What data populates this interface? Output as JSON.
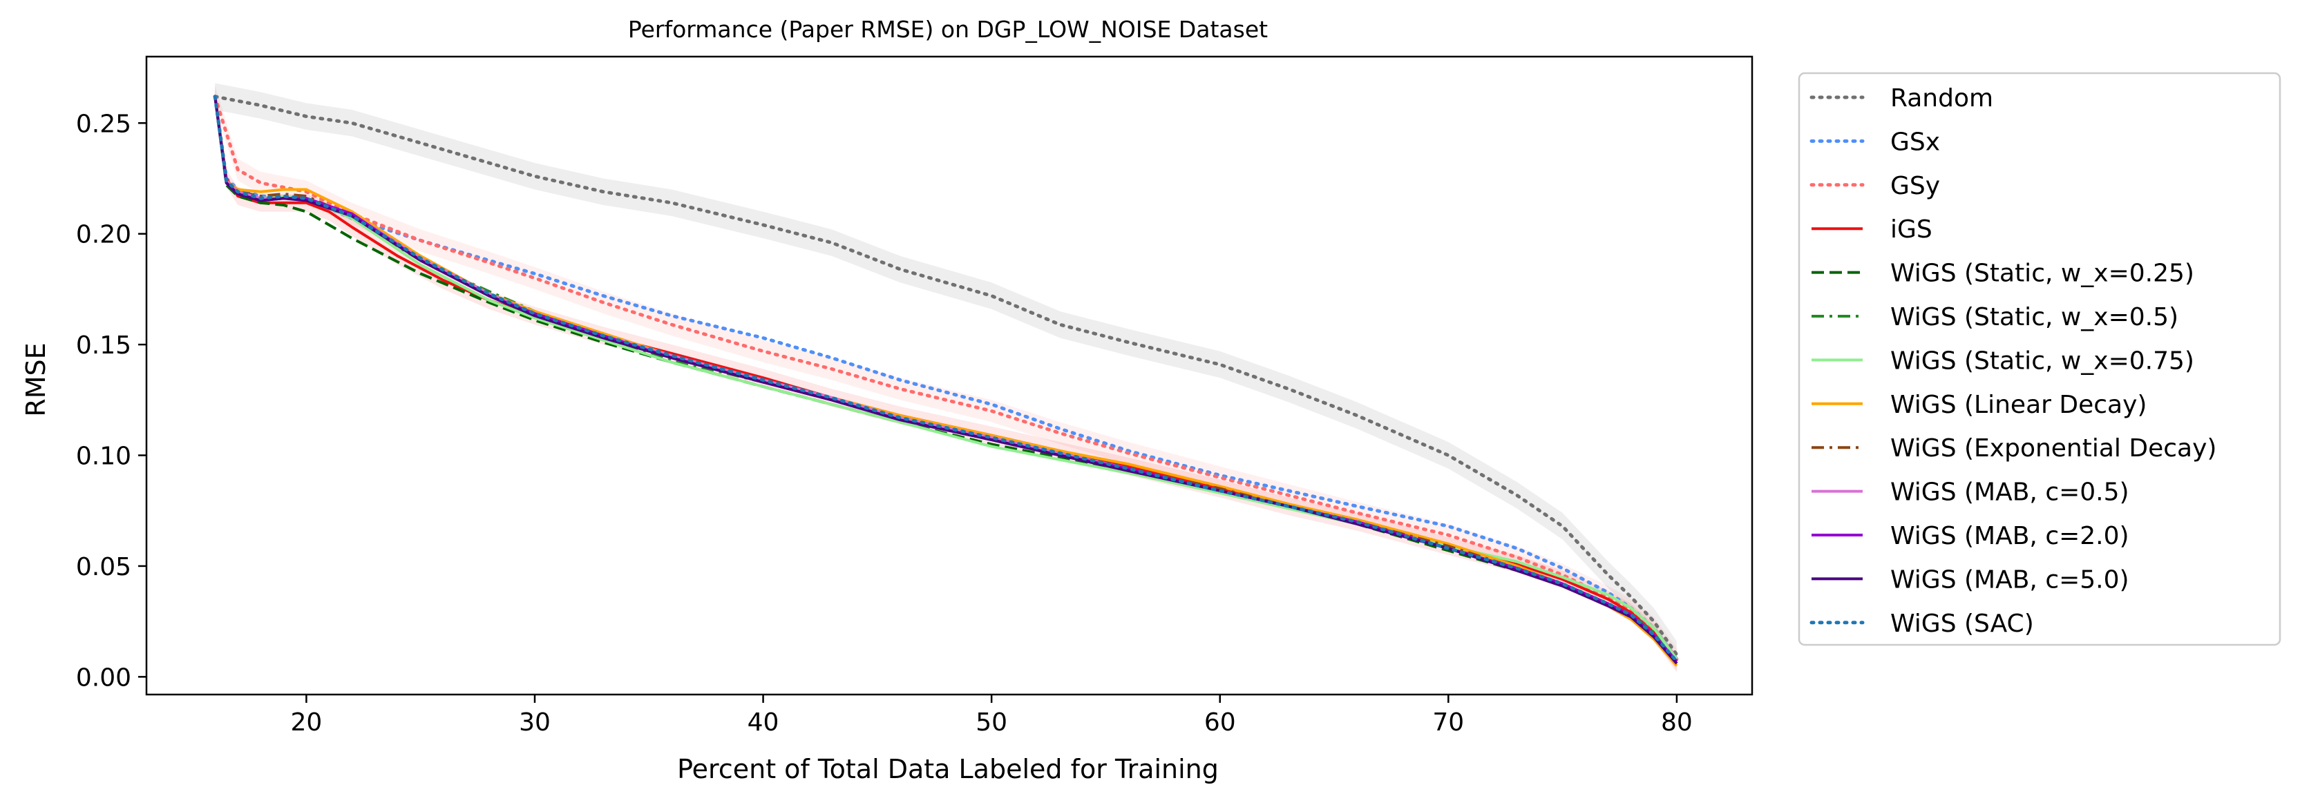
{
  "chart_data": {
    "type": "line",
    "title": "Performance (Paper RMSE) on DGP_LOW_NOISE Dataset",
    "xlabel": "Percent of Total Data Labeled for Training",
    "ylabel": "RMSE",
    "xlim": [
      13,
      83.3
    ],
    "ylim": [
      -0.008,
      0.28
    ],
    "xticks": [
      20,
      30,
      40,
      50,
      60,
      70,
      80
    ],
    "yticks": [
      0.0,
      0.05,
      0.1,
      0.15,
      0.2,
      0.25
    ],
    "xtick_labels": [
      "20",
      "30",
      "40",
      "50",
      "60",
      "70",
      "80"
    ],
    "ytick_labels": [
      "0.00",
      "0.05",
      "0.10",
      "0.15",
      "0.20",
      "0.25"
    ],
    "grid": false,
    "legend_position": "outside-right",
    "series": [
      {
        "name": "Random",
        "color": "#707070",
        "dash": "dotted",
        "band": true,
        "band_width": 0.006,
        "x": [
          16,
          17,
          18,
          20,
          22,
          25,
          28,
          30,
          33,
          36,
          40,
          43,
          46,
          50,
          53,
          56,
          60,
          63,
          66,
          70,
          73,
          75,
          77,
          78,
          79,
          80
        ],
        "y": [
          0.262,
          0.26,
          0.258,
          0.253,
          0.25,
          0.241,
          0.232,
          0.226,
          0.219,
          0.214,
          0.204,
          0.196,
          0.184,
          0.172,
          0.159,
          0.151,
          0.141,
          0.13,
          0.118,
          0.1,
          0.082,
          0.068,
          0.046,
          0.036,
          0.025,
          0.01
        ]
      },
      {
        "name": "GSx",
        "color": "#4f8ff7",
        "dash": "dotted",
        "band": false,
        "x": [
          16,
          16.5,
          17,
          18,
          20,
          22,
          25,
          28,
          30,
          33,
          36,
          40,
          43,
          46,
          50,
          53,
          56,
          60,
          63,
          66,
          70,
          73,
          75,
          77,
          78,
          79,
          80
        ],
        "y": [
          0.262,
          0.225,
          0.22,
          0.217,
          0.216,
          0.207,
          0.197,
          0.188,
          0.182,
          0.172,
          0.163,
          0.153,
          0.144,
          0.134,
          0.123,
          0.112,
          0.102,
          0.091,
          0.084,
          0.077,
          0.068,
          0.058,
          0.049,
          0.038,
          0.031,
          0.022,
          0.008
        ]
      },
      {
        "name": "GSy",
        "color": "#ff6b6b",
        "dash": "dotted",
        "band": true,
        "band_width": 0.005,
        "x": [
          16,
          17,
          18,
          20,
          22,
          25,
          28,
          30,
          33,
          36,
          40,
          43,
          46,
          50,
          53,
          56,
          60,
          63,
          66,
          70,
          73,
          75,
          77,
          78,
          79,
          80
        ],
        "y": [
          0.262,
          0.229,
          0.223,
          0.219,
          0.209,
          0.197,
          0.187,
          0.18,
          0.169,
          0.159,
          0.147,
          0.139,
          0.13,
          0.12,
          0.11,
          0.101,
          0.09,
          0.082,
          0.074,
          0.064,
          0.054,
          0.046,
          0.036,
          0.03,
          0.022,
          0.008
        ]
      },
      {
        "name": "iGS",
        "color": "#ee1111",
        "dash": "solid",
        "band": true,
        "band_width": 0.004,
        "x": [
          16,
          16.5,
          17,
          18,
          19,
          20,
          21,
          22,
          24,
          26,
          28,
          30,
          33,
          36,
          40,
          43,
          46,
          50,
          53,
          56,
          60,
          63,
          66,
          70,
          73,
          75,
          77,
          78,
          79,
          80
        ],
        "y": [
          0.262,
          0.225,
          0.217,
          0.214,
          0.214,
          0.214,
          0.21,
          0.203,
          0.19,
          0.179,
          0.17,
          0.163,
          0.154,
          0.146,
          0.135,
          0.126,
          0.118,
          0.109,
          0.102,
          0.095,
          0.085,
          0.077,
          0.07,
          0.059,
          0.051,
          0.044,
          0.035,
          0.029,
          0.02,
          0.006
        ]
      },
      {
        "name": "WiGS (Static, w_x=0.25)",
        "color": "#006400",
        "dash": "dashed",
        "band": false,
        "x": [
          16,
          16.5,
          17,
          18,
          19,
          20,
          22,
          25,
          28,
          30,
          33,
          36,
          40,
          43,
          46,
          50,
          53,
          56,
          60,
          63,
          66,
          70,
          73,
          75,
          77,
          78,
          79,
          80
        ],
        "y": [
          0.262,
          0.222,
          0.217,
          0.214,
          0.213,
          0.21,
          0.198,
          0.182,
          0.169,
          0.161,
          0.151,
          0.142,
          0.131,
          0.123,
          0.115,
          0.105,
          0.099,
          0.093,
          0.084,
          0.077,
          0.069,
          0.057,
          0.048,
          0.041,
          0.032,
          0.027,
          0.019,
          0.007
        ]
      },
      {
        "name": "WiGS (Static, w_x=0.5)",
        "color": "#228b22",
        "dash": "dashdot",
        "band": false,
        "x": [
          16,
          16.5,
          17,
          18,
          19,
          20,
          22,
          25,
          28,
          30,
          33,
          36,
          40,
          43,
          46,
          50,
          53,
          56,
          60,
          63,
          66,
          70,
          73,
          75,
          77,
          78,
          79,
          80
        ],
        "y": [
          0.262,
          0.223,
          0.218,
          0.216,
          0.217,
          0.216,
          0.207,
          0.188,
          0.174,
          0.165,
          0.153,
          0.143,
          0.133,
          0.125,
          0.116,
          0.107,
          0.1,
          0.093,
          0.084,
          0.077,
          0.07,
          0.058,
          0.049,
          0.042,
          0.033,
          0.028,
          0.02,
          0.007
        ]
      },
      {
        "name": "WiGS (Static, w_x=0.75)",
        "color": "#90ee90",
        "dash": "solid",
        "band": false,
        "x": [
          16,
          16.5,
          17,
          18,
          19,
          20,
          22,
          25,
          28,
          30,
          33,
          36,
          40,
          43,
          46,
          50,
          53,
          56,
          60,
          63,
          66,
          70,
          73,
          75,
          77,
          78,
          79,
          80
        ],
        "y": [
          0.262,
          0.223,
          0.218,
          0.216,
          0.217,
          0.216,
          0.207,
          0.186,
          0.17,
          0.162,
          0.152,
          0.142,
          0.131,
          0.123,
          0.115,
          0.104,
          0.098,
          0.092,
          0.083,
          0.076,
          0.069,
          0.059,
          0.052,
          0.045,
          0.037,
          0.031,
          0.022,
          0.008
        ]
      },
      {
        "name": "WiGS (Linear Decay)",
        "color": "#ffa500",
        "dash": "solid",
        "band": false,
        "x": [
          16,
          16.5,
          17,
          18,
          19,
          20,
          22,
          25,
          28,
          30,
          33,
          36,
          40,
          43,
          46,
          50,
          53,
          56,
          60,
          63,
          66,
          70,
          73,
          75,
          77,
          78,
          79,
          80
        ],
        "y": [
          0.262,
          0.224,
          0.22,
          0.219,
          0.22,
          0.22,
          0.21,
          0.19,
          0.173,
          0.165,
          0.155,
          0.145,
          0.134,
          0.126,
          0.118,
          0.109,
          0.102,
          0.096,
          0.086,
          0.078,
          0.071,
          0.06,
          0.05,
          0.042,
          0.032,
          0.026,
          0.017,
          0.005
        ]
      },
      {
        "name": "WiGS (Exponential Decay)",
        "color": "#8b4513",
        "dash": "dashdot",
        "band": false,
        "x": [
          16,
          16.5,
          17,
          18,
          19,
          20,
          22,
          25,
          28,
          30,
          33,
          36,
          40,
          43,
          46,
          50,
          53,
          56,
          60,
          63,
          66,
          70,
          73,
          75,
          77,
          78,
          79,
          80
        ],
        "y": [
          0.262,
          0.224,
          0.219,
          0.217,
          0.218,
          0.217,
          0.208,
          0.189,
          0.173,
          0.164,
          0.154,
          0.145,
          0.134,
          0.126,
          0.117,
          0.108,
          0.101,
          0.094,
          0.085,
          0.077,
          0.07,
          0.059,
          0.049,
          0.042,
          0.033,
          0.028,
          0.019,
          0.007
        ]
      },
      {
        "name": "WiGS (MAB, c=0.5)",
        "color": "#da70d6",
        "dash": "solid",
        "band": false,
        "x": [
          16,
          16.5,
          17,
          18,
          19,
          20,
          22,
          25,
          28,
          30,
          33,
          36,
          40,
          43,
          46,
          50,
          53,
          56,
          60,
          63,
          66,
          70,
          73,
          75,
          77,
          78,
          79,
          80
        ],
        "y": [
          0.262,
          0.224,
          0.219,
          0.216,
          0.216,
          0.216,
          0.209,
          0.189,
          0.173,
          0.164,
          0.154,
          0.145,
          0.134,
          0.126,
          0.117,
          0.108,
          0.101,
          0.094,
          0.084,
          0.077,
          0.07,
          0.058,
          0.049,
          0.042,
          0.033,
          0.028,
          0.019,
          0.007
        ]
      },
      {
        "name": "WiGS (MAB, c=2.0)",
        "color": "#9400d3",
        "dash": "solid",
        "band": false,
        "x": [
          16,
          16.5,
          17,
          18,
          19,
          20,
          22,
          25,
          28,
          30,
          33,
          36,
          40,
          43,
          46,
          50,
          53,
          56,
          60,
          63,
          66,
          70,
          73,
          75,
          77,
          78,
          79,
          80
        ],
        "y": [
          0.262,
          0.223,
          0.218,
          0.215,
          0.216,
          0.216,
          0.209,
          0.188,
          0.172,
          0.164,
          0.154,
          0.144,
          0.133,
          0.125,
          0.116,
          0.107,
          0.1,
          0.094,
          0.084,
          0.077,
          0.07,
          0.058,
          0.049,
          0.042,
          0.033,
          0.028,
          0.019,
          0.007
        ]
      },
      {
        "name": "WiGS (MAB, c=5.0)",
        "color": "#4b0082",
        "dash": "solid",
        "band": false,
        "x": [
          16,
          16.5,
          17,
          18,
          19,
          20,
          22,
          25,
          28,
          30,
          33,
          36,
          40,
          43,
          46,
          50,
          53,
          56,
          60,
          63,
          66,
          70,
          73,
          75,
          77,
          78,
          79,
          80
        ],
        "y": [
          0.262,
          0.223,
          0.218,
          0.215,
          0.216,
          0.215,
          0.208,
          0.188,
          0.172,
          0.163,
          0.153,
          0.144,
          0.133,
          0.125,
          0.116,
          0.107,
          0.1,
          0.093,
          0.084,
          0.077,
          0.069,
          0.058,
          0.048,
          0.041,
          0.032,
          0.027,
          0.018,
          0.006
        ]
      },
      {
        "name": "WiGS (SAC)",
        "color": "#1f77b4",
        "dash": "dotted",
        "band": false,
        "x": [
          16,
          16.5,
          17,
          18,
          19,
          20,
          22,
          25,
          28,
          30,
          33,
          36,
          40,
          43,
          46,
          50,
          53,
          56,
          60,
          63,
          66,
          70,
          73,
          75,
          77,
          78,
          79,
          80
        ],
        "y": [
          0.262,
          0.224,
          0.219,
          0.216,
          0.217,
          0.216,
          0.208,
          0.189,
          0.173,
          0.164,
          0.154,
          0.145,
          0.134,
          0.126,
          0.117,
          0.108,
          0.101,
          0.094,
          0.084,
          0.077,
          0.07,
          0.058,
          0.049,
          0.042,
          0.033,
          0.028,
          0.019,
          0.007
        ]
      }
    ]
  }
}
